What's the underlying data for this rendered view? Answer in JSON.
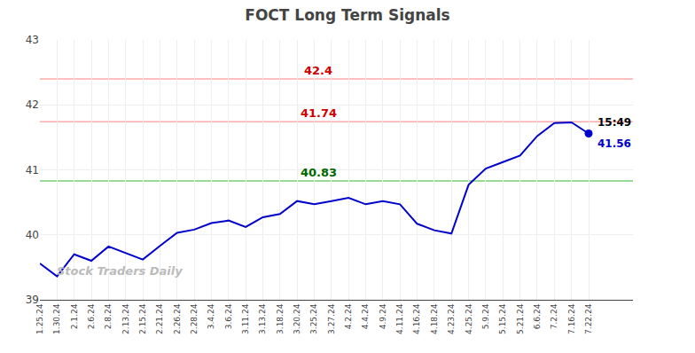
{
  "chart_data": {
    "type": "line",
    "title": "FOCT Long Term Signals",
    "categories": [
      "1.25.24",
      "1.30.24",
      "2.1.24",
      "2.6.24",
      "2.8.24",
      "2.13.24",
      "2.15.24",
      "2.21.24",
      "2.26.24",
      "2.28.24",
      "3.4.24",
      "3.6.24",
      "3.11.24",
      "3.13.24",
      "3.18.24",
      "3.20.24",
      "3.25.24",
      "3.27.24",
      "4.2.24",
      "4.4.24",
      "4.9.24",
      "4.11.24",
      "4.16.24",
      "4.18.24",
      "4.23.24",
      "4.25.24",
      "5.9.24",
      "5.15.24",
      "5.21.24",
      "6.6.24",
      "7.2.24",
      "7.16.24",
      "7.22.24"
    ],
    "values": [
      39.56,
      39.36,
      39.7,
      39.6,
      39.82,
      39.72,
      39.62,
      39.83,
      40.03,
      40.08,
      40.18,
      40.22,
      40.12,
      40.27,
      40.32,
      40.52,
      40.47,
      40.52,
      40.57,
      40.47,
      40.52,
      40.47,
      40.17,
      40.07,
      40.02,
      40.77,
      41.02,
      41.12,
      41.22,
      41.52,
      41.72,
      41.73,
      41.56
    ],
    "color": "#0000CC",
    "marker": "circle",
    "hlines": [
      {
        "value": 42.4,
        "label": "42.4",
        "color": "#FFAAAA",
        "label_color": "#CC0000"
      },
      {
        "value": 41.74,
        "label": "41.74",
        "color": "#FFAAAA",
        "label_color": "#CC0000"
      },
      {
        "value": 40.83,
        "label": "40.83",
        "color": "#77CC77",
        "label_color": "#006600"
      }
    ],
    "annotations": [
      {
        "text": "15:49",
        "color": "#000000"
      },
      {
        "text": "41.56",
        "color": "#0000CC"
      }
    ],
    "watermark": "Stock Traders Daily",
    "ylim": [
      39.0,
      43.0
    ],
    "yticks": [
      39,
      40,
      41,
      42,
      43
    ],
    "grid": true
  }
}
